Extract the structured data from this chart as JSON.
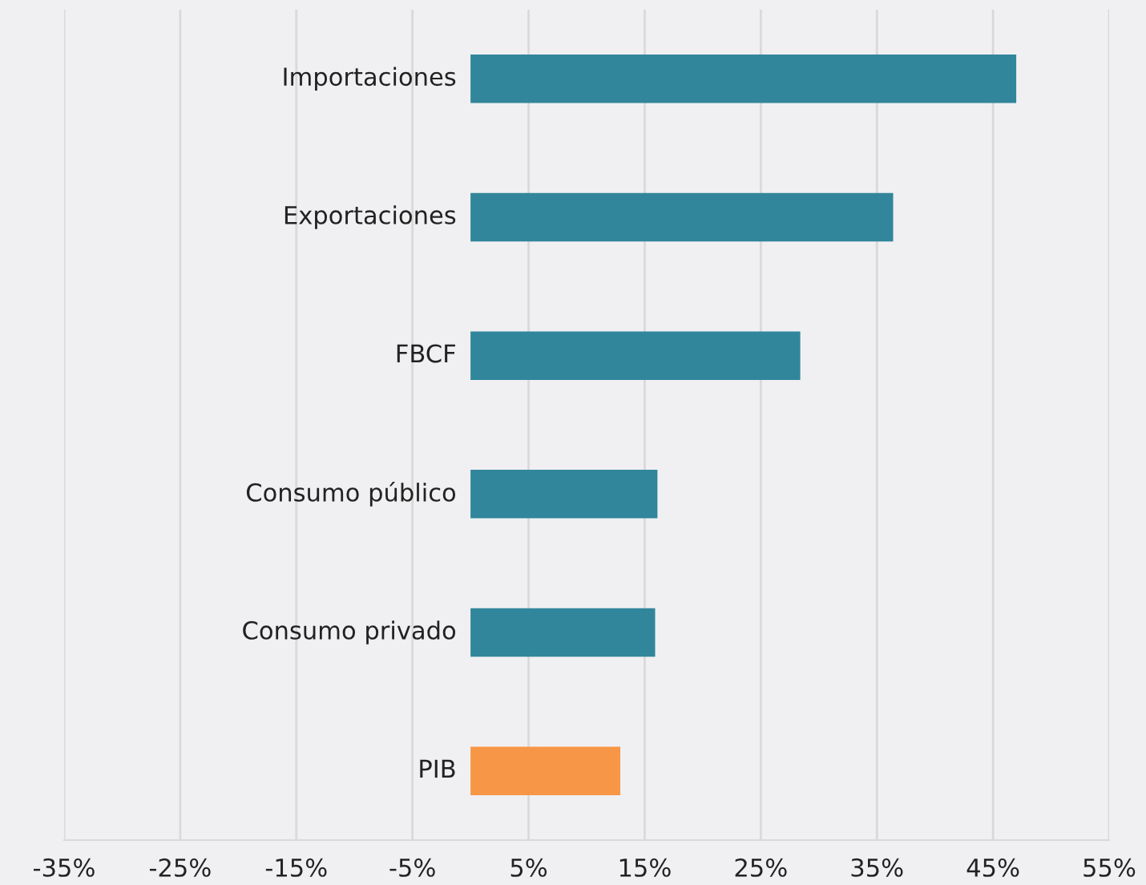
{
  "chart_data": {
    "type": "bar",
    "orientation": "horizontal",
    "categories": [
      "Importaciones",
      "Exportaciones",
      "FBCF",
      "Consumo público",
      "Consumo privado",
      "PIB"
    ],
    "values": [
      47.0,
      36.4,
      28.4,
      16.1,
      15.9,
      12.9
    ],
    "colors": [
      "#31869b",
      "#31869b",
      "#31869b",
      "#31869b",
      "#31869b",
      "#f79646"
    ],
    "xlim": [
      -35,
      55
    ],
    "xticks": [
      {
        "value": -35,
        "label": "-35%"
      },
      {
        "value": -25,
        "label": "-25%"
      },
      {
        "value": -15,
        "label": "-15%"
      },
      {
        "value": -5,
        "label": "-5%"
      },
      {
        "value": 5,
        "label": "5%"
      },
      {
        "value": 15,
        "label": "15%"
      },
      {
        "value": 25,
        "label": "25%"
      },
      {
        "value": 35,
        "label": "35%"
      },
      {
        "value": 45,
        "label": "45%"
      },
      {
        "value": 55,
        "label": "55%"
      }
    ],
    "grid": "x",
    "legend": false
  }
}
